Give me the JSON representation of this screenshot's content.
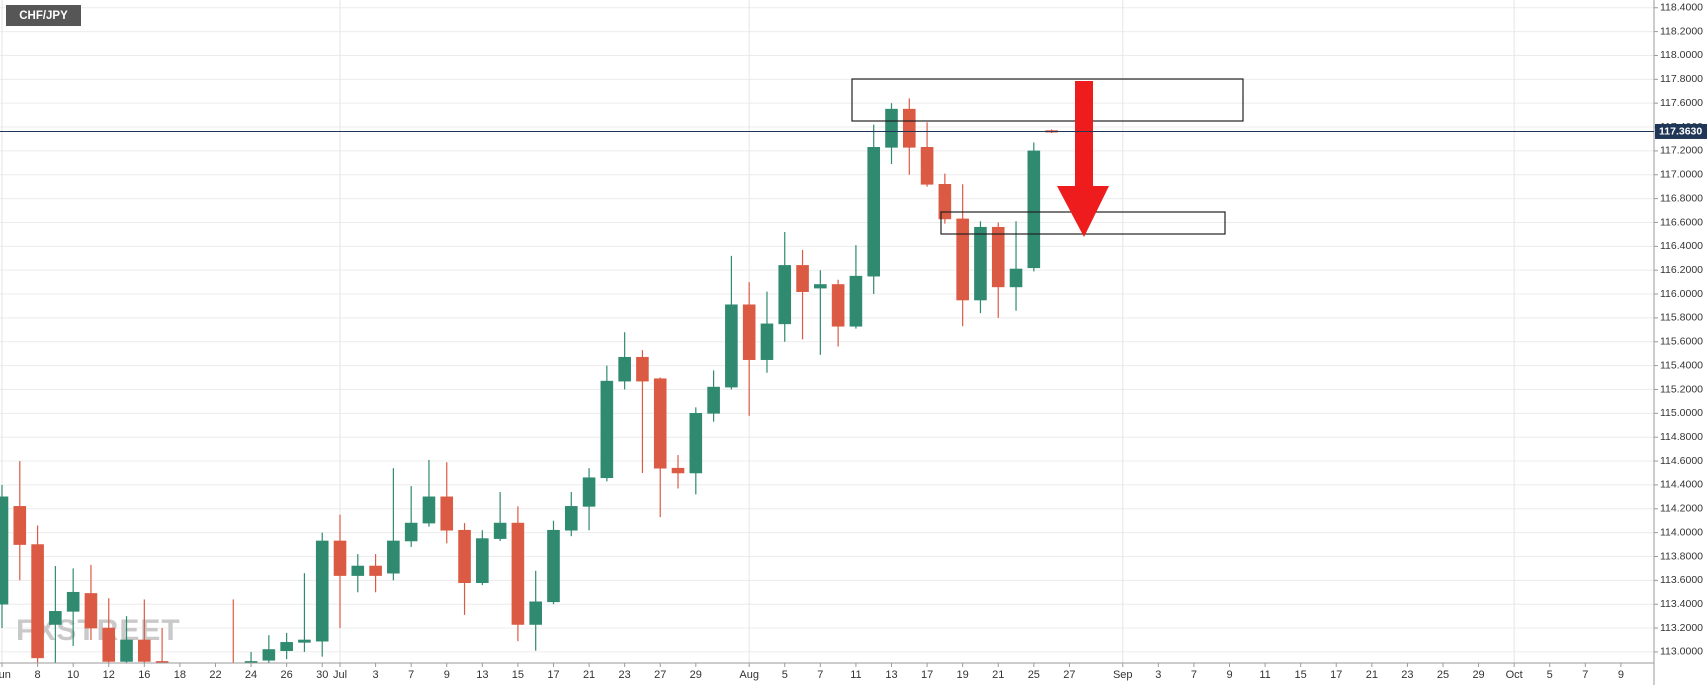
{
  "chart_data": {
    "type": "candlestick",
    "title": "CHF/JPY",
    "watermark": "FXSTREET",
    "categories": [
      "Jun",
      null,
      "8",
      null,
      "10",
      null,
      "12",
      null,
      "16",
      null,
      "18",
      null,
      "22",
      null,
      "24",
      null,
      "26",
      null,
      "30",
      "Jul",
      null,
      "3",
      null,
      "7",
      null,
      "9",
      null,
      "13",
      null,
      "15",
      null,
      "17",
      null,
      "21",
      null,
      "23",
      null,
      "27",
      null,
      "29",
      null,
      null,
      "Aug",
      null,
      "5",
      null,
      "7",
      null,
      "11",
      null,
      "13",
      null,
      "17",
      null,
      "19",
      null,
      "21",
      null,
      "25",
      null,
      "27",
      null,
      null,
      "Sep",
      null,
      "3",
      null,
      "7",
      null,
      "9",
      null,
      "11",
      null,
      "15",
      null,
      "17",
      null,
      "21",
      null,
      "23",
      null,
      "25",
      null,
      "29",
      null,
      "Oct",
      null,
      "5",
      null,
      "7",
      null,
      "9"
    ],
    "open": [
      113.4,
      114.22,
      113.9,
      113.23,
      113.34,
      113.49,
      113.2,
      112.92,
      113.1,
      112.92,
      null,
      null,
      null,
      112.9,
      112.9,
      112.93,
      113.01,
      113.08,
      113.09,
      113.93,
      113.64,
      113.72,
      113.66,
      113.93,
      114.08,
      114.3,
      114.02,
      113.58,
      113.95,
      114.08,
      113.23,
      113.42,
      114.02,
      114.22,
      114.46,
      115.27,
      115.47,
      115.29,
      114.54,
      114.5,
      115.0,
      115.22,
      115.91,
      115.45,
      115.75,
      116.24,
      116.05,
      116.08,
      115.73,
      116.15,
      117.23,
      117.55,
      117.23,
      116.92,
      116.63,
      115.95,
      116.56,
      116.06,
      116.22,
      117.37,
      null,
      null,
      null,
      null,
      null,
      null,
      null,
      null,
      null,
      null,
      null,
      null,
      null,
      null,
      null,
      null,
      null,
      null,
      null,
      null,
      null,
      null,
      null,
      null,
      null,
      null,
      null,
      null,
      null,
      null,
      null,
      null
    ],
    "high": [
      114.4,
      114.6,
      114.06,
      113.72,
      113.7,
      113.73,
      113.45,
      113.3,
      113.44,
      113.2,
      null,
      null,
      null,
      113.44,
      113.0,
      113.14,
      113.16,
      113.66,
      114.0,
      114.15,
      113.82,
      113.82,
      114.54,
      114.39,
      114.61,
      114.59,
      114.08,
      114.02,
      114.34,
      114.22,
      113.68,
      114.1,
      114.34,
      114.54,
      115.4,
      115.68,
      115.53,
      115.3,
      114.65,
      115.05,
      115.36,
      116.32,
      116.1,
      116.02,
      116.52,
      116.37,
      116.2,
      116.12,
      116.41,
      117.42,
      117.6,
      117.64,
      117.44,
      117.01,
      116.92,
      116.61,
      116.6,
      116.61,
      117.27,
      117.38,
      null,
      null,
      null,
      null,
      null,
      null,
      null,
      null,
      null,
      null,
      null,
      null,
      null,
      null,
      null,
      null,
      null,
      null,
      null,
      null,
      null,
      null,
      null,
      null,
      null,
      null,
      null,
      null,
      null,
      null,
      null,
      null
    ],
    "low": [
      113.2,
      113.6,
      112.85,
      112.9,
      113.05,
      113.1,
      112.9,
      112.9,
      112.9,
      112.88,
      null,
      null,
      null,
      112.85,
      112.88,
      112.9,
      112.94,
      113.0,
      112.96,
      113.2,
      113.5,
      113.5,
      113.6,
      113.88,
      114.05,
      113.91,
      113.31,
      113.56,
      113.93,
      113.09,
      113.01,
      113.4,
      113.97,
      114.02,
      114.43,
      115.2,
      114.5,
      114.13,
      114.37,
      114.32,
      114.93,
      115.2,
      114.98,
      115.34,
      115.6,
      115.62,
      115.49,
      115.56,
      115.71,
      116.0,
      117.09,
      117.0,
      116.9,
      116.59,
      115.73,
      115.84,
      115.8,
      115.86,
      116.19,
      117.35,
      null,
      null,
      null,
      null,
      null,
      null,
      null,
      null,
      null,
      null,
      null,
      null,
      null,
      null,
      null,
      null,
      null,
      null,
      null,
      null,
      null,
      null,
      null,
      null,
      null,
      null,
      null,
      null,
      null,
      null,
      null,
      null
    ],
    "close": [
      114.3,
      113.9,
      112.95,
      113.34,
      113.5,
      113.2,
      112.92,
      113.1,
      112.92,
      112.9,
      null,
      null,
      null,
      112.88,
      112.92,
      113.02,
      113.08,
      113.1,
      113.93,
      113.64,
      113.72,
      113.64,
      113.93,
      114.08,
      114.3,
      114.02,
      113.58,
      113.95,
      114.08,
      113.23,
      113.42,
      114.02,
      114.22,
      114.46,
      115.27,
      115.47,
      115.27,
      114.54,
      114.5,
      115.0,
      115.22,
      115.91,
      115.45,
      115.75,
      116.24,
      116.02,
      116.08,
      115.73,
      116.15,
      117.23,
      117.55,
      117.23,
      116.92,
      116.63,
      115.95,
      116.56,
      116.06,
      116.21,
      117.2,
      117.363,
      null,
      null,
      null,
      null,
      null,
      null,
      null,
      null,
      null,
      null,
      null,
      null,
      null,
      null,
      null,
      null,
      null,
      null,
      null,
      null,
      null,
      null,
      null,
      null,
      null,
      null,
      null,
      null,
      null,
      null,
      null,
      null
    ],
    "up_color": "#2f8a70",
    "down_color": "#db5a43",
    "ylim": [
      112.907,
      118.465
    ],
    "yticks": [
      {
        "value": 113.0,
        "label": "113.0000"
      },
      {
        "value": 113.2,
        "label": "113.2000"
      },
      {
        "value": 113.4,
        "label": "113.4000"
      },
      {
        "value": 113.6,
        "label": "113.6000"
      },
      {
        "value": 113.8,
        "label": "113.8000"
      },
      {
        "value": 114.0,
        "label": "114.0000"
      },
      {
        "value": 114.2,
        "label": "114.2000"
      },
      {
        "value": 114.4,
        "label": "114.4000"
      },
      {
        "value": 114.6,
        "label": "114.6000"
      },
      {
        "value": 114.8,
        "label": "114.8000"
      },
      {
        "value": 115.0,
        "label": "115.0000"
      },
      {
        "value": 115.2,
        "label": "115.2000"
      },
      {
        "value": 115.4,
        "label": "115.4000"
      },
      {
        "value": 115.6,
        "label": "115.6000"
      },
      {
        "value": 115.8,
        "label": "115.8000"
      },
      {
        "value": 116.0,
        "label": "116.0000"
      },
      {
        "value": 116.2,
        "label": "116.2000"
      },
      {
        "value": 116.4,
        "label": "116.4000"
      },
      {
        "value": 116.6,
        "label": "116.6000"
      },
      {
        "value": 116.8,
        "label": "116.8000"
      },
      {
        "value": 117.0,
        "label": "117.0000"
      },
      {
        "value": 117.2,
        "label": "117.2000"
      },
      {
        "value": 117.4,
        "label": "117.4000"
      },
      {
        "value": 117.6,
        "label": "117.6000"
      },
      {
        "value": 117.8,
        "label": "117.8000"
      },
      {
        "value": 118.0,
        "label": "118.0000"
      },
      {
        "value": 118.2,
        "label": "118.2000"
      },
      {
        "value": 118.4,
        "label": "118.4000"
      }
    ],
    "grid": true,
    "last_price": {
      "value": 117.363,
      "label": "117.3630"
    },
    "last_price_color": "#1f3656"
  }
}
